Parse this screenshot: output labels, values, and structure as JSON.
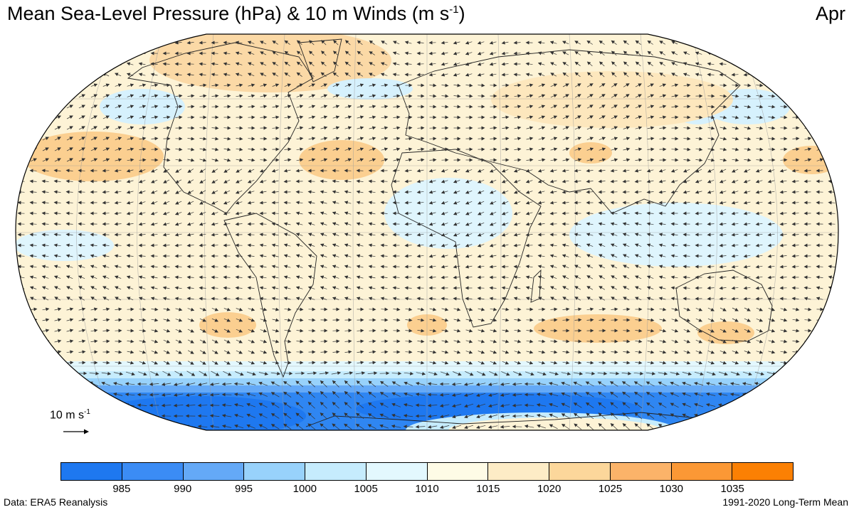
{
  "title": {
    "main": "Mean Sea-Level Pressure (hPa) & 10 m Winds (m s",
    "exponent": "-1",
    "close": ")"
  },
  "month": "Apr",
  "reference_vector": {
    "label": "10 m s",
    "exponent": "-1"
  },
  "colorbar": {
    "colors": [
      "#1e78f0",
      "#3b8cf5",
      "#64a9f7",
      "#98d2fb",
      "#c6ecfd",
      "#e3f8fe",
      "#fefbe6",
      "#fdecc6",
      "#fcd79b",
      "#fbb369",
      "#fb9835",
      "#fb8003"
    ],
    "tick_labels": [
      "985",
      "990",
      "995",
      "1000",
      "1005",
      "1010",
      "1015",
      "1020",
      "1025",
      "1030",
      "1035"
    ]
  },
  "footer": {
    "source": "Data: ERA5 Reanalysis",
    "period": "1991-2020 Long-Term Mean"
  }
}
